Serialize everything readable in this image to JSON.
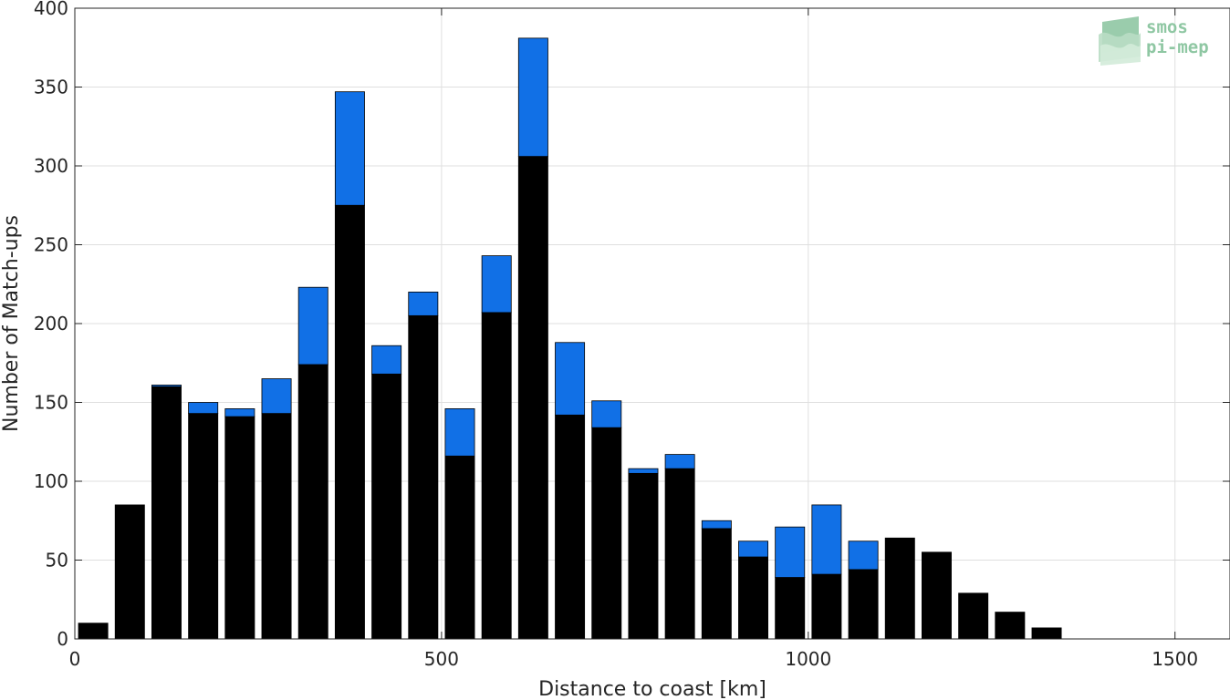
{
  "chart_data": {
    "type": "bar",
    "stacked": true,
    "xlabel": "Distance to coast [km]",
    "ylabel": "Number of Match-ups",
    "xlim": [
      0,
      1575
    ],
    "ylim": [
      0,
      400
    ],
    "xticks": [
      0,
      500,
      1000,
      1500
    ],
    "yticks": [
      0,
      50,
      100,
      150,
      200,
      250,
      300,
      350,
      400
    ],
    "grid": true,
    "bin_width": 50,
    "bar_width": 40,
    "x": [
      25,
      75,
      125,
      175,
      225,
      275,
      325,
      375,
      425,
      475,
      525,
      575,
      625,
      675,
      725,
      775,
      825,
      875,
      925,
      975,
      1025,
      1075,
      1125,
      1175,
      1225,
      1275,
      1325
    ],
    "series": [
      {
        "color": "#000000",
        "values": [
          10,
          85,
          160,
          143,
          141,
          143,
          174,
          275,
          168,
          205,
          116,
          207,
          306,
          142,
          134,
          105,
          108,
          70,
          52,
          39,
          41,
          44,
          64,
          55,
          29,
          17,
          7
        ]
      },
      {
        "color": "#1170e6",
        "values": [
          0,
          0,
          1,
          7,
          5,
          22,
          49,
          72,
          18,
          15,
          30,
          36,
          75,
          46,
          17,
          3,
          9,
          5,
          10,
          32,
          44,
          18,
          0,
          0,
          0,
          0,
          0
        ]
      }
    ]
  },
  "logo": {
    "line1": "smos",
    "line2": "pi-mep",
    "color": "#8fc7a3"
  },
  "colors": {
    "grid": "#dfdfdf",
    "axis": "#262626",
    "bar_edge": "#000000"
  }
}
